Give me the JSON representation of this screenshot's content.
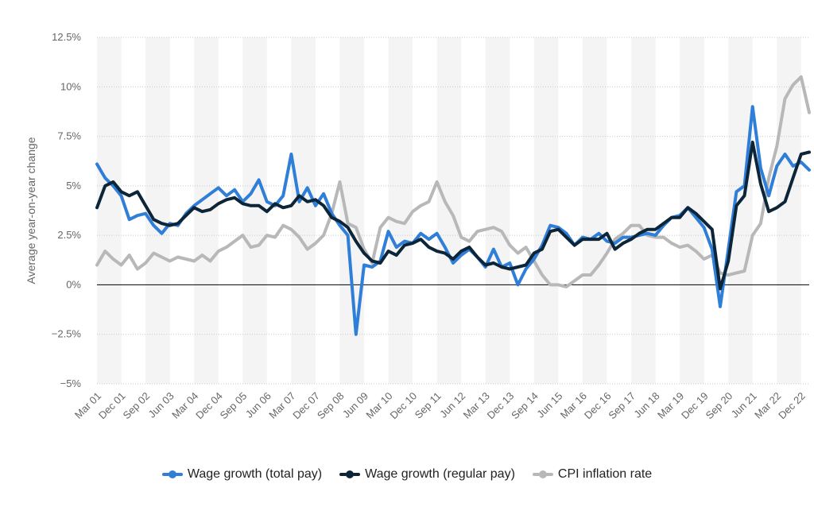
{
  "chart_data": {
    "type": "line",
    "title": "",
    "xlabel": "",
    "ylabel": "Average year-on-year change",
    "ylim": [
      -5,
      12.5
    ],
    "y_ticks": [
      -5,
      -2.5,
      0,
      2.5,
      5,
      7.5,
      10,
      12.5
    ],
    "y_tick_labels": [
      "−5%",
      "−2.5%",
      "0%",
      "2.5%",
      "5%",
      "7.5%",
      "10%",
      "12.5%"
    ],
    "x_tick_labels": [
      "Mar 01",
      "Dec 01",
      "Sep 02",
      "Jun 03",
      "Mar 04",
      "Dec 04",
      "Sep 05",
      "Jun 06",
      "Mar 07",
      "Dec 07",
      "Sep 08",
      "Jun 09",
      "Mar 10",
      "Dec 10",
      "Sep 11",
      "Jun 12",
      "Mar 13",
      "Dec 13",
      "Sep 14",
      "Jun 15",
      "Mar 16",
      "Dec 16",
      "Sep 17",
      "Jun 18",
      "Mar 19",
      "Dec 19",
      "Sep 20",
      "Jun 21",
      "Mar 22",
      "Dec 22"
    ],
    "x_range_months": [
      "Mar 01",
      "Mar 23"
    ],
    "grid": "horizontal dotted",
    "legend_position": "bottom-center",
    "colors": {
      "total": "#2f7ed8",
      "regular": "#0d2538",
      "cpi": "#b8b8b8"
    },
    "series": [
      {
        "name": "Wage growth (total pay)",
        "key": "total",
        "points": [
          [
            "Mar 01",
            6.1
          ],
          [
            "Jun 01",
            5.4
          ],
          [
            "Sep 01",
            5.0
          ],
          [
            "Dec 01",
            4.5
          ],
          [
            "Mar 02",
            3.3
          ],
          [
            "Jun 02",
            3.5
          ],
          [
            "Sep 02",
            3.6
          ],
          [
            "Dec 02",
            3.0
          ],
          [
            "Mar 03",
            2.6
          ],
          [
            "Jun 03",
            3.1
          ],
          [
            "Sep 03",
            3.0
          ],
          [
            "Dec 03",
            3.6
          ],
          [
            "Mar 04",
            4.0
          ],
          [
            "Jun 04",
            4.3
          ],
          [
            "Sep 04",
            4.6
          ],
          [
            "Dec 04",
            4.9
          ],
          [
            "Mar 05",
            4.5
          ],
          [
            "Jun 05",
            4.8
          ],
          [
            "Sep 05",
            4.2
          ],
          [
            "Dec 05",
            4.6
          ],
          [
            "Mar 06",
            5.3
          ],
          [
            "Jun 06",
            4.2
          ],
          [
            "Sep 06",
            4.0
          ],
          [
            "Dec 06",
            4.5
          ],
          [
            "Mar 07",
            6.6
          ],
          [
            "Jun 07",
            4.2
          ],
          [
            "Sep 07",
            4.9
          ],
          [
            "Dec 07",
            4.0
          ],
          [
            "Mar 08",
            4.6
          ],
          [
            "Jun 08",
            3.6
          ],
          [
            "Sep 08",
            3.0
          ],
          [
            "Dec 08",
            2.5
          ],
          [
            "Mar 09",
            -2.5
          ],
          [
            "Jun 09",
            1.0
          ],
          [
            "Sep 09",
            0.9
          ],
          [
            "Dec 09",
            1.2
          ],
          [
            "Mar 10",
            2.7
          ],
          [
            "Jun 10",
            1.9
          ],
          [
            "Sep 10",
            2.2
          ],
          [
            "Dec 10",
            2.1
          ],
          [
            "Mar 11",
            2.6
          ],
          [
            "Jun 11",
            2.3
          ],
          [
            "Sep 11",
            2.6
          ],
          [
            "Dec 11",
            1.9
          ],
          [
            "Mar 12",
            1.1
          ],
          [
            "Jun 12",
            1.5
          ],
          [
            "Sep 12",
            1.8
          ],
          [
            "Dec 12",
            1.4
          ],
          [
            "Mar 13",
            0.9
          ],
          [
            "Jun 13",
            1.8
          ],
          [
            "Sep 13",
            0.9
          ],
          [
            "Dec 13",
            1.1
          ],
          [
            "Mar 14",
            0.0
          ],
          [
            "Jun 14",
            0.8
          ],
          [
            "Sep 14",
            1.3
          ],
          [
            "Dec 14",
            2.0
          ],
          [
            "Mar 15",
            3.0
          ],
          [
            "Jun 15",
            2.9
          ],
          [
            "Sep 15",
            2.6
          ],
          [
            "Dec 15",
            2.0
          ],
          [
            "Mar 16",
            2.4
          ],
          [
            "Jun 16",
            2.3
          ],
          [
            "Sep 16",
            2.6
          ],
          [
            "Dec 16",
            2.2
          ],
          [
            "Mar 17",
            2.1
          ],
          [
            "Jun 17",
            2.4
          ],
          [
            "Sep 17",
            2.4
          ],
          [
            "Dec 17",
            2.5
          ],
          [
            "Mar 18",
            2.6
          ],
          [
            "Jun 18",
            2.5
          ],
          [
            "Sep 18",
            3.0
          ],
          [
            "Dec 18",
            3.4
          ],
          [
            "Mar 19",
            3.5
          ],
          [
            "Jun 19",
            3.9
          ],
          [
            "Sep 19",
            3.4
          ],
          [
            "Dec 19",
            2.9
          ],
          [
            "Mar 20",
            1.8
          ],
          [
            "Jun 20",
            -1.1
          ],
          [
            "Sep 20",
            1.8
          ],
          [
            "Dec 20",
            4.7
          ],
          [
            "Mar 21",
            5.0
          ],
          [
            "Jun 21",
            9.0
          ],
          [
            "Sep 21",
            5.9
          ],
          [
            "Dec 21",
            4.5
          ],
          [
            "Mar 22",
            6.0
          ],
          [
            "Jun 22",
            6.6
          ],
          [
            "Sep 22",
            6.0
          ],
          [
            "Dec 22",
            6.2
          ],
          [
            "Mar 23",
            5.8
          ]
        ]
      },
      {
        "name": "Wage growth (regular pay)",
        "key": "regular",
        "points": [
          [
            "Mar 01",
            3.9
          ],
          [
            "Jun 01",
            5.0
          ],
          [
            "Sep 01",
            5.2
          ],
          [
            "Dec 01",
            4.7
          ],
          [
            "Mar 02",
            4.5
          ],
          [
            "Jun 02",
            4.7
          ],
          [
            "Sep 02",
            4.0
          ],
          [
            "Dec 02",
            3.3
          ],
          [
            "Mar 03",
            3.1
          ],
          [
            "Jun 03",
            3.0
          ],
          [
            "Sep 03",
            3.1
          ],
          [
            "Dec 03",
            3.5
          ],
          [
            "Mar 04",
            3.9
          ],
          [
            "Jun 04",
            3.7
          ],
          [
            "Sep 04",
            3.8
          ],
          [
            "Dec 04",
            4.1
          ],
          [
            "Mar 05",
            4.3
          ],
          [
            "Jun 05",
            4.4
          ],
          [
            "Sep 05",
            4.1
          ],
          [
            "Dec 05",
            4.0
          ],
          [
            "Mar 06",
            4.0
          ],
          [
            "Jun 06",
            3.7
          ],
          [
            "Sep 06",
            4.1
          ],
          [
            "Dec 06",
            3.9
          ],
          [
            "Mar 07",
            4.0
          ],
          [
            "Jun 07",
            4.5
          ],
          [
            "Sep 07",
            4.2
          ],
          [
            "Dec 07",
            4.3
          ],
          [
            "Mar 08",
            4.0
          ],
          [
            "Jun 08",
            3.4
          ],
          [
            "Sep 08",
            3.2
          ],
          [
            "Dec 08",
            2.9
          ],
          [
            "Mar 09",
            2.2
          ],
          [
            "Jun 09",
            1.6
          ],
          [
            "Sep 09",
            1.2
          ],
          [
            "Dec 09",
            1.1
          ],
          [
            "Mar 10",
            1.7
          ],
          [
            "Jun 10",
            1.5
          ],
          [
            "Sep 10",
            2.0
          ],
          [
            "Dec 10",
            2.1
          ],
          [
            "Mar 11",
            2.3
          ],
          [
            "Jun 11",
            1.9
          ],
          [
            "Sep 11",
            1.7
          ],
          [
            "Dec 11",
            1.6
          ],
          [
            "Mar 12",
            1.3
          ],
          [
            "Jun 12",
            1.7
          ],
          [
            "Sep 12",
            1.9
          ],
          [
            "Dec 12",
            1.4
          ],
          [
            "Mar 13",
            1.0
          ],
          [
            "Jun 13",
            1.1
          ],
          [
            "Sep 13",
            0.9
          ],
          [
            "Dec 13",
            0.8
          ],
          [
            "Mar 14",
            0.9
          ],
          [
            "Jun 14",
            1.0
          ],
          [
            "Sep 14",
            1.6
          ],
          [
            "Dec 14",
            1.8
          ],
          [
            "Mar 15",
            2.7
          ],
          [
            "Jun 15",
            2.8
          ],
          [
            "Sep 15",
            2.4
          ],
          [
            "Dec 15",
            2.0
          ],
          [
            "Mar 16",
            2.3
          ],
          [
            "Jun 16",
            2.3
          ],
          [
            "Sep 16",
            2.3
          ],
          [
            "Dec 16",
            2.6
          ],
          [
            "Mar 17",
            1.8
          ],
          [
            "Jun 17",
            2.1
          ],
          [
            "Sep 17",
            2.3
          ],
          [
            "Dec 17",
            2.6
          ],
          [
            "Mar 18",
            2.8
          ],
          [
            "Jun 18",
            2.8
          ],
          [
            "Sep 18",
            3.1
          ],
          [
            "Dec 18",
            3.4
          ],
          [
            "Mar 19",
            3.4
          ],
          [
            "Jun 19",
            3.9
          ],
          [
            "Sep 19",
            3.6
          ],
          [
            "Dec 19",
            3.2
          ],
          [
            "Mar 20",
            2.8
          ],
          [
            "Jun 20",
            -0.2
          ],
          [
            "Sep 20",
            1.2
          ],
          [
            "Dec 20",
            4.0
          ],
          [
            "Mar 21",
            4.5
          ],
          [
            "Jun 21",
            7.2
          ],
          [
            "Sep 21",
            5.1
          ],
          [
            "Dec 21",
            3.7
          ],
          [
            "Mar 22",
            3.9
          ],
          [
            "Jun 22",
            4.2
          ],
          [
            "Sep 22",
            5.4
          ],
          [
            "Dec 22",
            6.6
          ],
          [
            "Mar 23",
            6.7
          ]
        ]
      },
      {
        "name": "CPI inflation rate",
        "key": "cpi",
        "points": [
          [
            "Mar 01",
            1.0
          ],
          [
            "Jun 01",
            1.7
          ],
          [
            "Sep 01",
            1.3
          ],
          [
            "Dec 01",
            1.0
          ],
          [
            "Mar 02",
            1.5
          ],
          [
            "Jun 02",
            0.8
          ],
          [
            "Sep 02",
            1.1
          ],
          [
            "Dec 02",
            1.6
          ],
          [
            "Mar 03",
            1.4
          ],
          [
            "Jun 03",
            1.2
          ],
          [
            "Sep 03",
            1.4
          ],
          [
            "Dec 03",
            1.3
          ],
          [
            "Mar 04",
            1.2
          ],
          [
            "Jun 04",
            1.5
          ],
          [
            "Sep 04",
            1.2
          ],
          [
            "Dec 04",
            1.7
          ],
          [
            "Mar 05",
            1.9
          ],
          [
            "Jun 05",
            2.2
          ],
          [
            "Sep 05",
            2.5
          ],
          [
            "Dec 05",
            1.9
          ],
          [
            "Mar 06",
            2.0
          ],
          [
            "Jun 06",
            2.5
          ],
          [
            "Sep 06",
            2.4
          ],
          [
            "Dec 06",
            3.0
          ],
          [
            "Mar 07",
            2.8
          ],
          [
            "Jun 07",
            2.4
          ],
          [
            "Sep 07",
            1.8
          ],
          [
            "Dec 07",
            2.1
          ],
          [
            "Mar 08",
            2.5
          ],
          [
            "Jun 08",
            3.6
          ],
          [
            "Sep 08",
            5.2
          ],
          [
            "Dec 08",
            3.1
          ],
          [
            "Mar 09",
            2.9
          ],
          [
            "Jun 09",
            1.8
          ],
          [
            "Sep 09",
            1.1
          ],
          [
            "Dec 09",
            2.9
          ],
          [
            "Mar 10",
            3.4
          ],
          [
            "Jun 10",
            3.2
          ],
          [
            "Sep 10",
            3.1
          ],
          [
            "Dec 10",
            3.7
          ],
          [
            "Mar 11",
            4.0
          ],
          [
            "Jun 11",
            4.2
          ],
          [
            "Sep 11",
            5.2
          ],
          [
            "Dec 11",
            4.2
          ],
          [
            "Mar 12",
            3.5
          ],
          [
            "Jun 12",
            2.4
          ],
          [
            "Sep 12",
            2.2
          ],
          [
            "Dec 12",
            2.7
          ],
          [
            "Mar 13",
            2.8
          ],
          [
            "Jun 13",
            2.9
          ],
          [
            "Sep 13",
            2.7
          ],
          [
            "Dec 13",
            2.0
          ],
          [
            "Mar 14",
            1.6
          ],
          [
            "Jun 14",
            1.9
          ],
          [
            "Sep 14",
            1.2
          ],
          [
            "Dec 14",
            0.5
          ],
          [
            "Mar 15",
            0.0
          ],
          [
            "Jun 15",
            0.0
          ],
          [
            "Sep 15",
            -0.1
          ],
          [
            "Dec 15",
            0.2
          ],
          [
            "Mar 16",
            0.5
          ],
          [
            "Jun 16",
            0.5
          ],
          [
            "Sep 16",
            1.0
          ],
          [
            "Dec 16",
            1.6
          ],
          [
            "Mar 17",
            2.3
          ],
          [
            "Jun 17",
            2.6
          ],
          [
            "Sep 17",
            3.0
          ],
          [
            "Dec 17",
            3.0
          ],
          [
            "Mar 18",
            2.5
          ],
          [
            "Jun 18",
            2.4
          ],
          [
            "Sep 18",
            2.4
          ],
          [
            "Dec 18",
            2.1
          ],
          [
            "Mar 19",
            1.9
          ],
          [
            "Jun 19",
            2.0
          ],
          [
            "Sep 19",
            1.7
          ],
          [
            "Dec 19",
            1.3
          ],
          [
            "Mar 20",
            1.5
          ],
          [
            "Jun 20",
            0.6
          ],
          [
            "Sep 20",
            0.5
          ],
          [
            "Dec 20",
            0.6
          ],
          [
            "Mar 21",
            0.7
          ],
          [
            "Jun 21",
            2.5
          ],
          [
            "Sep 21",
            3.1
          ],
          [
            "Dec 21",
            5.4
          ],
          [
            "Mar 22",
            7.0
          ],
          [
            "Jun 22",
            9.4
          ],
          [
            "Sep 22",
            10.1
          ],
          [
            "Dec 22",
            10.5
          ],
          [
            "Mar 23",
            8.7
          ]
        ]
      }
    ]
  }
}
